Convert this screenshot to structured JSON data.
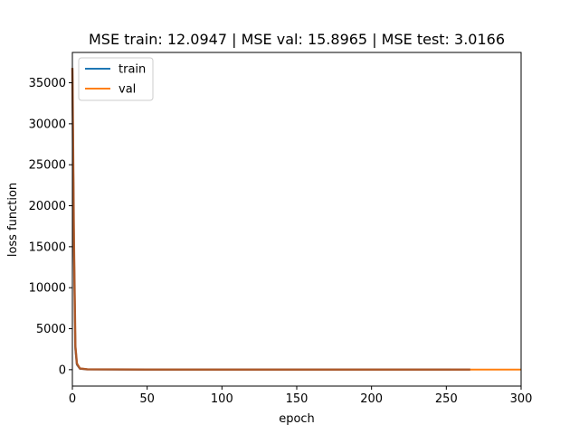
{
  "chart_data": {
    "type": "line",
    "title": "MSE train: 12.0947 | MSE val: 15.8965 | MSE test: 3.0166",
    "xlabel": "epoch",
    "ylabel": "loss function",
    "xlim": [
      0,
      300
    ],
    "ylim": [
      -2000,
      38700
    ],
    "xticks": [
      0,
      50,
      100,
      150,
      200,
      250,
      300
    ],
    "yticks": [
      0,
      5000,
      10000,
      15000,
      20000,
      25000,
      30000,
      35000
    ],
    "grid": false,
    "legend_position": "top-left",
    "series": [
      {
        "name": "train",
        "color": "#1f77b4",
        "x": [
          0,
          1,
          2,
          3,
          5,
          10,
          50,
          100,
          150,
          200,
          253
        ],
        "y": [
          36800,
          15000,
          2500,
          600,
          120,
          40,
          20,
          15,
          13,
          12,
          12
        ]
      },
      {
        "name": "val",
        "color": "#ff7f0e",
        "x": [
          0,
          1,
          2,
          3,
          5,
          10,
          50,
          100,
          150,
          200,
          250,
          300
        ],
        "y": [
          36800,
          16000,
          3000,
          800,
          160,
          50,
          25,
          20,
          18,
          16,
          16,
          16
        ]
      },
      {
        "color": "#a0522d",
        "x": [
          0,
          1,
          2,
          3,
          5,
          10,
          50,
          100,
          150,
          200,
          266
        ],
        "y": [
          36800,
          15500,
          2800,
          700,
          140,
          45,
          22,
          18,
          15,
          14,
          14
        ]
      }
    ]
  }
}
